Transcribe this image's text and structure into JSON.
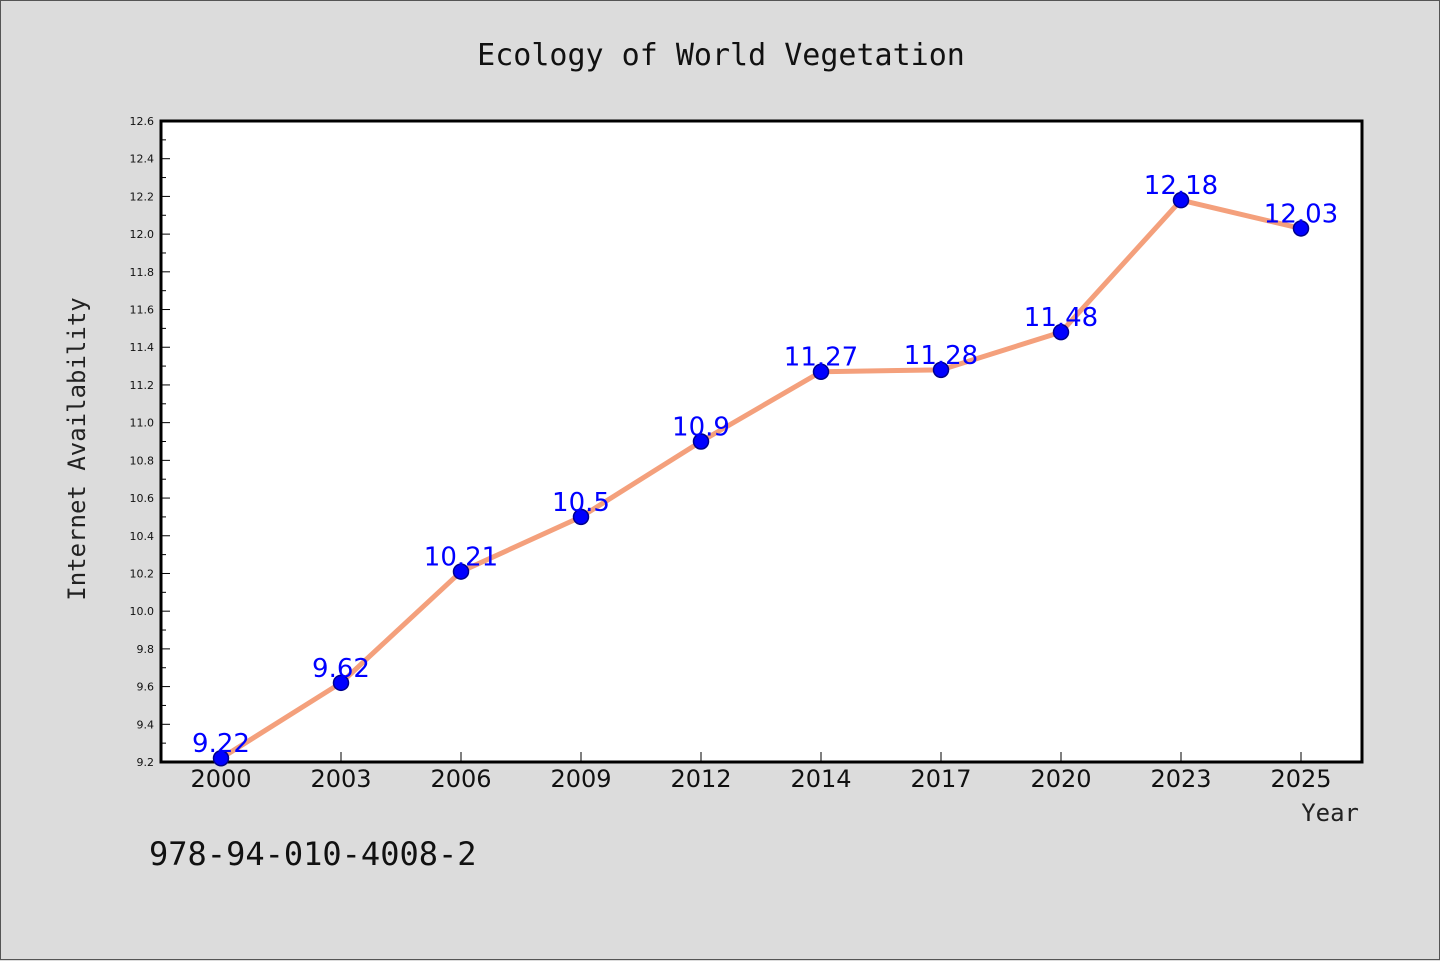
{
  "chart_data": {
    "type": "line",
    "title": "Ecology of World Vegetation",
    "xlabel": "Year",
    "ylabel": "Internet Availability",
    "categories": [
      "2000",
      "2003",
      "2006",
      "2009",
      "2012",
      "2014",
      "2017",
      "2020",
      "2023",
      "2025"
    ],
    "series": [
      {
        "values": [
          9.22,
          9.62,
          10.21,
          10.5,
          10.9,
          11.27,
          11.28,
          11.48,
          12.18,
          12.03
        ],
        "labels": [
          "9.22",
          "9.62",
          "10.21",
          "10.5",
          "10.9",
          "11.27",
          "11.28",
          "11.48",
          "12.18",
          "12.03"
        ]
      }
    ],
    "ylim": [
      9.2,
      12.6
    ],
    "yticks": [
      "9.2",
      "9.4",
      "9.6",
      "9.8",
      "10.0",
      "10.2",
      "10.4",
      "10.6",
      "10.8",
      "11.0",
      "11.2",
      "11.4",
      "11.6",
      "11.8",
      "12.0",
      "12.2",
      "12.4",
      "12.6"
    ],
    "grid": false,
    "legend": "none",
    "colors": {
      "line": "#f4a07c",
      "marker": "#0000ff",
      "marker_edge": "#00008b",
      "data_label": "#0000ff",
      "plot_background": "#ffffff",
      "page_background": "#dcdcdc"
    }
  },
  "footer": {
    "isbn": "978-94-010-4008-2"
  }
}
